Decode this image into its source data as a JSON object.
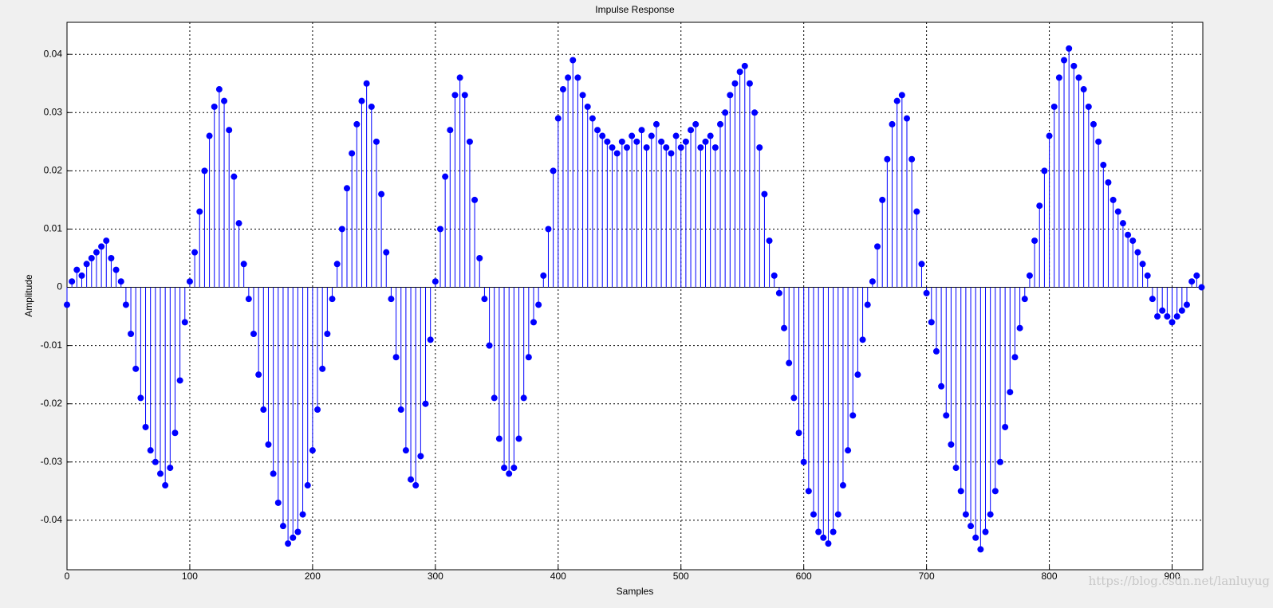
{
  "chart_data": {
    "type": "stem",
    "title": "Impulse Response",
    "x_label": "Samples",
    "y_label": "Amplitude",
    "watermark": "https://blog.csdn.net/lanluyug",
    "color": "#0000ff",
    "grid": true,
    "xlim": [
      0,
      925
    ],
    "xticks": [
      0,
      100,
      200,
      300,
      400,
      500,
      600,
      700,
      800,
      900
    ],
    "ylim": [
      -0.0485,
      0.0455
    ],
    "yticks": [
      -0.04,
      -0.03,
      -0.02,
      -0.01,
      0,
      0.01,
      0.02,
      0.03,
      0.04
    ],
    "x": [
      0,
      4,
      8,
      12,
      16,
      20,
      24,
      28,
      32,
      36,
      40,
      44,
      48,
      52,
      56,
      60,
      64,
      68,
      72,
      76,
      80,
      84,
      88,
      92,
      96,
      100,
      104,
      108,
      112,
      116,
      120,
      124,
      128,
      132,
      136,
      140,
      144,
      148,
      152,
      156,
      160,
      164,
      168,
      172,
      176,
      180,
      184,
      188,
      192,
      196,
      200,
      204,
      208,
      212,
      216,
      220,
      224,
      228,
      232,
      236,
      240,
      244,
      248,
      252,
      256,
      260,
      264,
      268,
      272,
      276,
      280,
      284,
      288,
      292,
      296,
      300,
      304,
      308,
      312,
      316,
      320,
      324,
      328,
      332,
      336,
      340,
      344,
      348,
      352,
      356,
      360,
      364,
      368,
      372,
      376,
      380,
      384,
      388,
      392,
      396,
      400,
      404,
      408,
      412,
      416,
      420,
      424,
      428,
      432,
      436,
      440,
      444,
      448,
      452,
      456,
      460,
      464,
      468,
      472,
      476,
      480,
      484,
      488,
      492,
      496,
      500,
      504,
      508,
      512,
      516,
      520,
      524,
      528,
      532,
      536,
      540,
      544,
      548,
      552,
      556,
      560,
      564,
      568,
      572,
      576,
      580,
      584,
      588,
      592,
      596,
      600,
      604,
      608,
      612,
      616,
      620,
      624,
      628,
      632,
      636,
      640,
      644,
      648,
      652,
      656,
      660,
      664,
      668,
      672,
      676,
      680,
      684,
      688,
      692,
      696,
      700,
      704,
      708,
      712,
      716,
      720,
      724,
      728,
      732,
      736,
      740,
      744,
      748,
      752,
      756,
      760,
      764,
      768,
      772,
      776,
      780,
      784,
      788,
      792,
      796,
      800,
      804,
      808,
      812,
      816,
      820,
      824,
      828,
      832,
      836,
      840,
      844,
      848,
      852,
      856,
      860,
      864,
      868,
      872,
      876,
      880,
      884,
      888,
      892,
      896,
      900,
      904,
      908,
      912,
      916,
      920,
      924
    ],
    "values": [
      -0.003,
      0.001,
      0.003,
      0.002,
      0.004,
      0.005,
      0.006,
      0.007,
      0.008,
      0.005,
      0.003,
      0.001,
      -0.003,
      -0.008,
      -0.014,
      -0.019,
      -0.024,
      -0.028,
      -0.03,
      -0.032,
      -0.034,
      -0.031,
      -0.025,
      -0.016,
      -0.006,
      0.001,
      0.006,
      0.013,
      0.02,
      0.026,
      0.031,
      0.034,
      0.032,
      0.027,
      0.019,
      0.011,
      0.004,
      -0.002,
      -0.008,
      -0.015,
      -0.021,
      -0.027,
      -0.032,
      -0.037,
      -0.041,
      -0.044,
      -0.043,
      -0.042,
      -0.039,
      -0.034,
      -0.028,
      -0.021,
      -0.014,
      -0.008,
      -0.002,
      0.004,
      0.01,
      0.017,
      0.023,
      0.028,
      0.032,
      0.035,
      0.031,
      0.025,
      0.016,
      0.006,
      -0.002,
      -0.012,
      -0.021,
      -0.028,
      -0.033,
      -0.034,
      -0.029,
      -0.02,
      -0.009,
      0.001,
      0.01,
      0.019,
      0.027,
      0.033,
      0.036,
      0.033,
      0.025,
      0.015,
      0.005,
      -0.002,
      -0.01,
      -0.019,
      -0.026,
      -0.031,
      -0.032,
      -0.031,
      -0.026,
      -0.019,
      -0.012,
      -0.006,
      -0.003,
      0.002,
      0.01,
      0.02,
      0.029,
      0.034,
      0.036,
      0.039,
      0.036,
      0.033,
      0.031,
      0.029,
      0.027,
      0.026,
      0.025,
      0.024,
      0.023,
      0.025,
      0.024,
      0.026,
      0.025,
      0.027,
      0.024,
      0.026,
      0.028,
      0.025,
      0.024,
      0.023,
      0.026,
      0.024,
      0.025,
      0.027,
      0.028,
      0.024,
      0.025,
      0.026,
      0.024,
      0.028,
      0.03,
      0.033,
      0.035,
      0.037,
      0.038,
      0.035,
      0.03,
      0.024,
      0.016,
      0.008,
      0.002,
      -0.001,
      -0.007,
      -0.013,
      -0.019,
      -0.025,
      -0.03,
      -0.035,
      -0.039,
      -0.042,
      -0.043,
      -0.044,
      -0.042,
      -0.039,
      -0.034,
      -0.028,
      -0.022,
      -0.015,
      -0.009,
      -0.003,
      0.001,
      0.007,
      0.015,
      0.022,
      0.028,
      0.032,
      0.033,
      0.029,
      0.022,
      0.013,
      0.004,
      -0.001,
      -0.006,
      -0.011,
      -0.017,
      -0.022,
      -0.027,
      -0.031,
      -0.035,
      -0.039,
      -0.041,
      -0.043,
      -0.045,
      -0.042,
      -0.039,
      -0.035,
      -0.03,
      -0.024,
      -0.018,
      -0.012,
      -0.007,
      -0.002,
      0.002,
      0.008,
      0.014,
      0.02,
      0.026,
      0.031,
      0.036,
      0.039,
      0.041,
      0.038,
      0.036,
      0.034,
      0.031,
      0.028,
      0.025,
      0.021,
      0.018,
      0.015,
      0.013,
      0.011,
      0.009,
      0.008,
      0.006,
      0.004,
      0.002,
      -0.002,
      -0.005,
      -0.004,
      -0.005,
      -0.006,
      -0.005,
      -0.004,
      -0.003,
      0.001,
      0.002,
      0.0
    ]
  }
}
